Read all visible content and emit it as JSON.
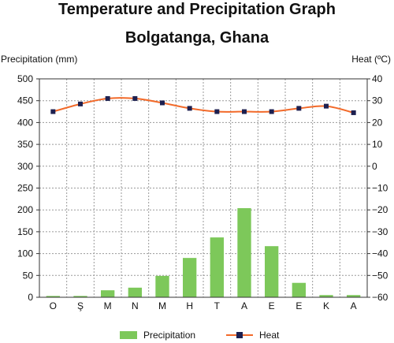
{
  "title": "Temperature and Precipitation Graph",
  "subtitle": "Bolgatanga, Ghana",
  "chart_data": {
    "type": "bar",
    "categories": [
      "O",
      "Ş",
      "M",
      "N",
      "M",
      "H",
      "T",
      "A",
      "E",
      "E",
      "K",
      "A"
    ],
    "series": [
      {
        "name": "Precipitation",
        "type": "bar",
        "axis": "left",
        "color": "#7dc85a",
        "values": [
          3,
          3,
          16,
          22,
          49,
          90,
          137,
          204,
          117,
          33,
          5,
          5
        ]
      },
      {
        "name": "Heat",
        "type": "line",
        "axis": "right",
        "color": "#f26a2a",
        "marker_color": "#1d2050",
        "values": [
          25,
          28.5,
          31,
          31,
          29,
          26.5,
          25,
          25,
          25,
          26.5,
          27.5,
          24.5
        ]
      }
    ],
    "ylabel": "Precipitation (mm)",
    "y2label": "Heat (ºC)",
    "ylim": [
      0,
      500
    ],
    "y2lim": [
      -60,
      40
    ],
    "yticks": [
      0,
      50,
      100,
      150,
      200,
      250,
      300,
      350,
      400,
      450,
      500
    ],
    "y2ticks": [
      "−60",
      "−50",
      "−40",
      "−30",
      "−20",
      "−10",
      "0",
      "10",
      "20",
      "30",
      "40"
    ],
    "grid": true,
    "legend": "bottom"
  }
}
